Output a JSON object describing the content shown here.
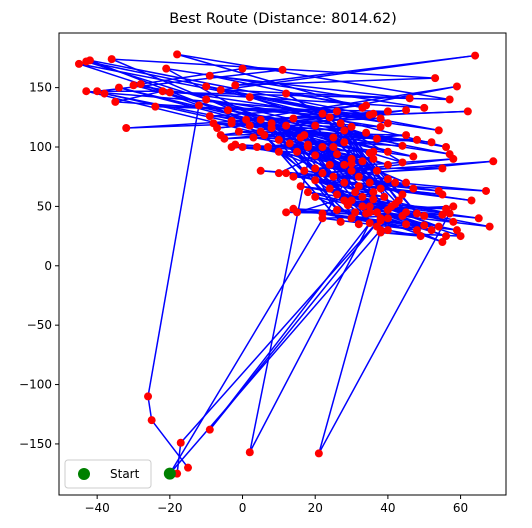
{
  "chart_data": {
    "type": "scatter",
    "title": "Best Route (Distance: 8014.62)",
    "xlabel": "",
    "ylabel": "",
    "xlim": [
      -50.5,
      72.5
    ],
    "ylim": [
      -193,
      196
    ],
    "x_ticks": [
      -40,
      -20,
      0,
      20,
      40,
      60
    ],
    "y_ticks": [
      -150,
      -100,
      -50,
      0,
      50,
      100,
      150
    ],
    "grid": false,
    "legend": {
      "position": "lower left",
      "entries": [
        "Start"
      ]
    },
    "colors": {
      "route": "#0000ff",
      "city": "#ff0000",
      "start": "#008000"
    },
    "series": [
      {
        "type": "line",
        "values": [
          [
            -15,
            -170
          ],
          [
            -25,
            -130
          ],
          [
            -26,
            -110
          ],
          [
            -12,
            135
          ],
          [
            -28,
            153
          ],
          [
            0,
            166
          ],
          [
            11,
            165
          ],
          [
            -40,
            147
          ],
          [
            -22,
            147
          ],
          [
            -35,
            138
          ],
          [
            38,
            124
          ],
          [
            -32,
            116
          ],
          [
            40,
            130
          ],
          [
            -24,
            134
          ],
          [
            36,
            128
          ],
          [
            -7,
            116
          ],
          [
            45,
            131
          ],
          [
            -6,
            110
          ],
          [
            34,
            112
          ],
          [
            -5,
            107
          ],
          [
            30,
            117
          ],
          [
            -8,
            120
          ],
          [
            28,
            114
          ],
          [
            -3,
            120
          ],
          [
            30,
            90
          ],
          [
            0,
            100
          ],
          [
            25,
            100
          ],
          [
            10,
            78
          ],
          [
            40,
            73
          ],
          [
            5,
            80
          ],
          [
            42,
            70
          ],
          [
            15,
            45
          ],
          [
            50,
            42
          ],
          [
            14,
            48
          ],
          [
            48,
            30
          ],
          [
            22,
            40
          ],
          [
            55,
            43
          ],
          [
            12,
            45
          ],
          [
            58,
            50
          ],
          [
            21,
            -158
          ],
          [
            38,
            30
          ],
          [
            -20,
            -175
          ],
          [
            30,
            80
          ],
          [
            -21,
            166
          ],
          [
            50,
            133
          ],
          [
            -20,
            146
          ],
          [
            57,
            140
          ],
          [
            -18,
            178
          ],
          [
            33,
            133
          ],
          [
            -9,
            160
          ],
          [
            46,
            141
          ],
          [
            -6,
            148
          ],
          [
            64,
            177
          ],
          [
            -2,
            152
          ],
          [
            53,
            158
          ],
          [
            -36,
            174
          ],
          [
            45,
            70
          ],
          [
            -42,
            173
          ],
          [
            35,
            127
          ],
          [
            -43,
            147
          ],
          [
            40,
            85
          ],
          [
            -45,
            170
          ],
          [
            40,
            120
          ],
          [
            -43,
            172
          ],
          [
            28,
            104
          ],
          [
            -38,
            145
          ],
          [
            35,
            95
          ],
          [
            -34,
            150
          ],
          [
            40,
            96
          ],
          [
            -30,
            152
          ],
          [
            54,
            114
          ],
          [
            -10,
            151
          ],
          [
            56,
            100
          ],
          [
            -4,
            131
          ],
          [
            57,
            94
          ],
          [
            -3,
            122
          ],
          [
            62,
            130
          ],
          [
            1,
            123
          ],
          [
            59,
            151
          ],
          [
            2,
            118
          ],
          [
            52,
            104
          ],
          [
            5,
            113
          ],
          [
            48,
            106
          ],
          [
            4,
            100
          ],
          [
            45,
            110
          ],
          [
            -1,
            113
          ],
          [
            47,
            92
          ],
          [
            8,
            120
          ],
          [
            44,
            87
          ],
          [
            12,
            145
          ],
          [
            34,
            135
          ],
          [
            -9,
            126
          ],
          [
            38,
            117
          ],
          [
            -10,
            140
          ],
          [
            37,
            107
          ],
          [
            2,
            142
          ],
          [
            44,
            101
          ],
          [
            3,
            108
          ],
          [
            36,
            90
          ],
          [
            -3,
            100
          ],
          [
            36,
            96
          ],
          [
            -2,
            102
          ],
          [
            37,
            80
          ],
          [
            18,
            100
          ],
          [
            44,
            60
          ],
          [
            20,
            93
          ],
          [
            47,
            65
          ],
          [
            17,
            80
          ],
          [
            54,
            63
          ],
          [
            14,
            75
          ],
          [
            55,
            82
          ],
          [
            20,
            82
          ],
          [
            58,
            90
          ],
          [
            22,
            78
          ],
          [
            69,
            88
          ],
          [
            25,
            75
          ],
          [
            67,
            63
          ],
          [
            28,
            70
          ],
          [
            63,
            55
          ],
          [
            32,
            67
          ],
          [
            55,
            60
          ],
          [
            20,
            72
          ],
          [
            54,
            33
          ],
          [
            24,
            65
          ],
          [
            57,
            44
          ],
          [
            26,
            60
          ],
          [
            58,
            37
          ],
          [
            28,
            55
          ],
          [
            56,
            48
          ],
          [
            33,
            50
          ],
          [
            65,
            40
          ],
          [
            30,
            55
          ],
          [
            68,
            33
          ],
          [
            35,
            45
          ],
          [
            59,
            30
          ],
          [
            38,
            38
          ],
          [
            55,
            20
          ],
          [
            40,
            40
          ],
          [
            56,
            25
          ],
          [
            37,
            45
          ],
          [
            50,
            34
          ],
          [
            22,
            44
          ],
          [
            45,
            35
          ],
          [
            30,
            40
          ],
          [
            52,
            30
          ],
          [
            35,
            50
          ],
          [
            60,
            25
          ],
          [
            38,
            28
          ],
          [
            49,
            25
          ],
          [
            40,
            30
          ],
          [
            20,
            58
          ],
          [
            44,
            42
          ],
          [
            18,
            62
          ],
          [
            42,
            52
          ],
          [
            16,
            67
          ],
          [
            39,
            58
          ],
          [
            12,
            78
          ],
          [
            36,
            62
          ],
          [
            7,
            100
          ],
          [
            32,
            75
          ],
          [
            10,
            106
          ],
          [
            28,
            85
          ],
          [
            13,
            103
          ],
          [
            30,
            86
          ],
          [
            16,
            108
          ],
          [
            33,
            88
          ],
          [
            22,
            100
          ],
          [
            35,
            70
          ],
          [
            24,
            85
          ],
          [
            31,
            62
          ],
          [
            26,
            94
          ],
          [
            38,
            65
          ],
          [
            25,
            108
          ],
          [
            45,
            45
          ],
          [
            27,
            120
          ],
          [
            48,
            44
          ],
          [
            24,
            125
          ],
          [
            43,
            55
          ],
          [
            22,
            128
          ],
          [
            41,
            50
          ],
          [
            26,
            130
          ],
          [
            36,
            56
          ],
          [
            14,
            124
          ],
          [
            33,
            58
          ],
          [
            8,
            116
          ],
          [
            29,
            51
          ],
          [
            5,
            123
          ],
          [
            26,
            47
          ],
          [
            12,
            118
          ],
          [
            32,
            35
          ],
          [
            6,
            110
          ],
          [
            27,
            37
          ],
          [
            10,
            96
          ],
          [
            37,
            33
          ],
          [
            15,
            96
          ],
          [
            34,
            44
          ],
          [
            18,
            102
          ],
          [
            31,
            45
          ],
          [
            17,
            110
          ],
          [
            40,
            47
          ],
          [
            20,
            118
          ],
          [
            2,
            -157
          ],
          [
            35,
            36
          ],
          [
            -9,
            -138
          ],
          [
            38,
            40
          ],
          [
            -17,
            -149
          ],
          [
            -18,
            -175
          ]
        ]
      },
      {
        "type": "scatter",
        "name": "Start",
        "values": [
          [
            -20,
            -175
          ]
        ]
      }
    ]
  }
}
